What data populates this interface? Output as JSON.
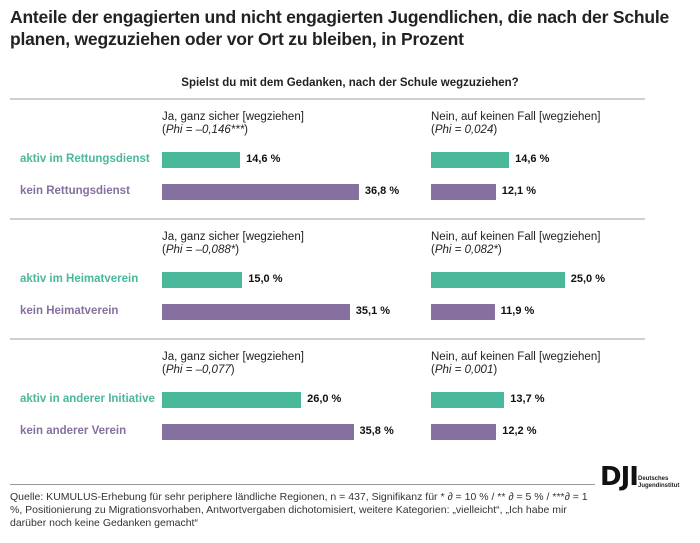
{
  "chart_data": {
    "type": "bar",
    "title": "Anteile der engagierten und nicht engagierten Jugendlichen, die nach der Schule planen, wegzuziehen oder vor Ort zu bleiben, in Prozent",
    "subtitle": "Spielst du mit dem Gedanken, nach der Schule wegzuziehen?",
    "unit": "%",
    "colors": {
      "active": "#4ab89b",
      "inactive": "#85709f"
    },
    "groups": [
      {
        "rows": [
          {
            "label": "aktiv im Rettungsdienst",
            "kind": "active"
          },
          {
            "label": "kein Rettungsdienst",
            "kind": "inactive"
          }
        ],
        "panels": [
          {
            "heading": "Ja, ganz sicher [wegziehen]",
            "phi_prefix": "(",
            "phi": "Phi = –0,146***",
            "phi_suffix": ")",
            "values": [
              14.6,
              36.8
            ],
            "labels": [
              "14,6 %",
              "36,8 %"
            ]
          },
          {
            "heading": "Nein, auf keinen Fall [wegziehen]",
            "phi_prefix": "(",
            "phi": "Phi = 0,024",
            "phi_suffix": ")",
            "values": [
              14.6,
              12.1
            ],
            "labels": [
              "14,6 %",
              "12,1 %"
            ]
          }
        ]
      },
      {
        "rows": [
          {
            "label": "aktiv im Heimatverein",
            "kind": "active"
          },
          {
            "label": "kein Heimatverein",
            "kind": "inactive"
          }
        ],
        "panels": [
          {
            "heading": "Ja, ganz sicher [wegziehen]",
            "phi_prefix": "(",
            "phi": "Phi = –0,088*",
            "phi_suffix": ")",
            "values": [
              15.0,
              35.1
            ],
            "labels": [
              "15,0 %",
              "35,1 %"
            ]
          },
          {
            "heading": "Nein, auf keinen Fall [wegziehen]",
            "phi_prefix": "(",
            "phi": "Phi = 0,082*",
            "phi_suffix": ")",
            "values": [
              25.0,
              11.9
            ],
            "labels": [
              "25,0 %",
              "11,9 %"
            ]
          }
        ]
      },
      {
        "rows": [
          {
            "label": "aktiv in anderer Initiative",
            "kind": "active"
          },
          {
            "label": "kein anderer Verein",
            "kind": "inactive"
          }
        ],
        "panels": [
          {
            "heading": "Ja, ganz sicher [wegziehen]",
            "phi_prefix": "(",
            "phi": "Phi = –0,077",
            "phi_suffix": ")",
            "values": [
              26.0,
              35.8
            ],
            "labels": [
              "26,0 %",
              "35,8 %"
            ]
          },
          {
            "heading": "Nein, auf keinen Fall [wegziehen]",
            "phi_prefix": "(",
            "phi": "Phi = 0,001",
            "phi_suffix": ")",
            "values": [
              13.7,
              12.2
            ],
            "labels": [
              "13,7 %",
              "12,2 %"
            ]
          }
        ]
      }
    ]
  },
  "footer": {
    "source": "Quelle: KUMULUS-Erhebung für sehr periphere ländliche Regionen, n = 437, Signifikanz für * ∂ = 10 % / ** ∂ = 5 % / ***∂ = 1 %, Positionierung zu Migrationsvorhaben, Antwortvergaben dichotomisiert, weitere Kategorien: „vielleicht“, „Ich habe mir darüber noch keine Gedanken gemacht“",
    "logo_mark": "DJI",
    "logo_line1": "Deutsches",
    "logo_line2": "Jugendinstitut"
  }
}
